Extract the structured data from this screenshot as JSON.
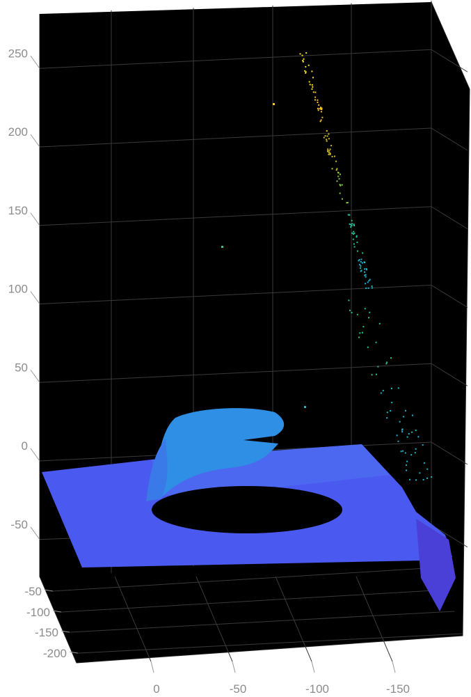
{
  "chart_data": {
    "type": "scatter3d",
    "colormap": "parula",
    "background": "#000000",
    "grid": true,
    "axes": {
      "z": {
        "ticks": [
          250,
          200,
          150,
          100,
          50,
          0,
          -50
        ],
        "tick_labels": [
          "250",
          "200",
          "150",
          "100",
          "50",
          "0",
          "-50"
        ]
      },
      "y": {
        "ticks": [
          -50,
          -100,
          -150,
          -200
        ],
        "tick_labels": [
          "-50",
          "-100",
          "-150",
          "-200"
        ]
      },
      "x": {
        "ticks": [
          0,
          -50,
          -100,
          -150
        ],
        "tick_labels": [
          "0",
          "-50",
          "-100",
          "-150"
        ]
      }
    },
    "point_groups": [
      {
        "name": "",
        "z_approx": -40
      },
      {
        "name": "",
        "z_approx": 20
      },
      {
        "name": "",
        "z_range": [
          40,
          260
        ]
      }
    ]
  }
}
